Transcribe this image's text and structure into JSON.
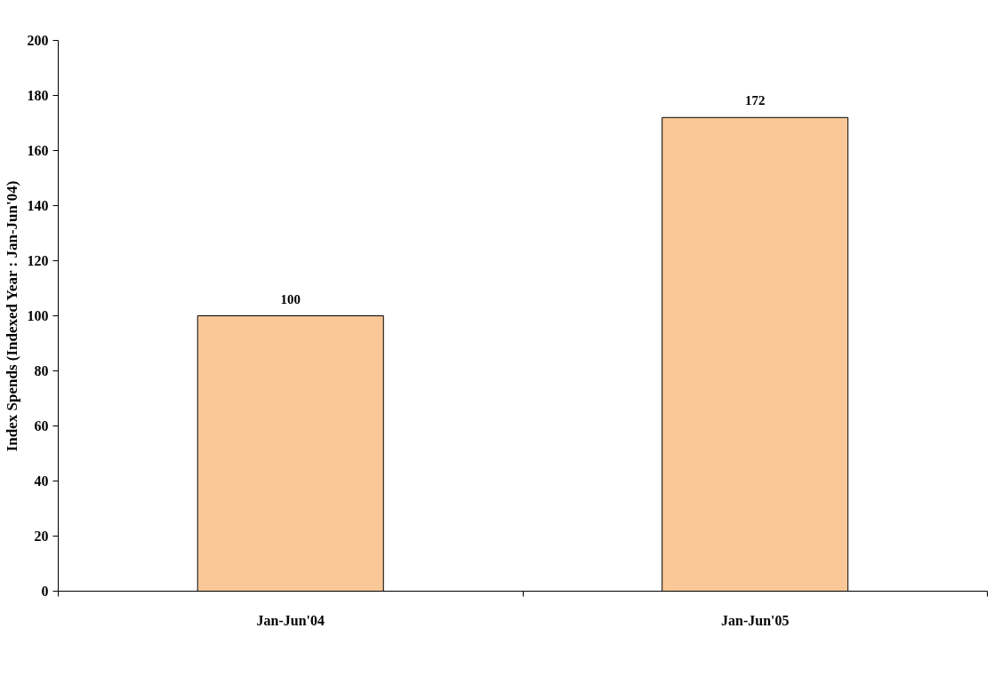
{
  "chart_data": {
    "type": "bar",
    "ylabel": "Index Spends (Indexed Year : Jan-Jun'04)",
    "categories": [
      "Jan-Jun'04",
      "Jan-Jun'05"
    ],
    "values": [
      100,
      172
    ],
    "color": "#fac896",
    "ylim": [
      0,
      200
    ],
    "yticks": [
      0,
      20,
      40,
      60,
      80,
      100,
      120,
      140,
      160,
      180,
      200
    ],
    "data_labels": true,
    "grid": false
  }
}
